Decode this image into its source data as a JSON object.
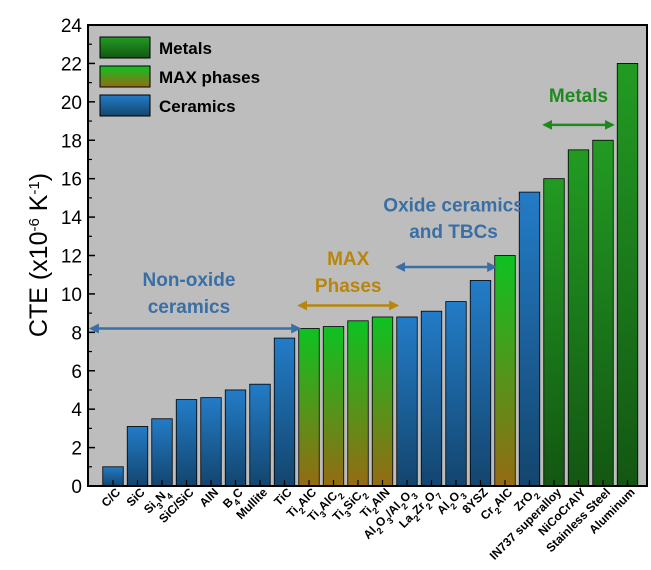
{
  "chart_data": {
    "type": "bar",
    "ylabel_parts": [
      "CTE (x10",
      "-6",
      " K",
      "-1",
      ")"
    ],
    "ylim": [
      0,
      24
    ],
    "yticks": [
      0,
      2,
      4,
      6,
      8,
      10,
      12,
      14,
      16,
      18,
      20,
      22,
      24
    ],
    "grid": false,
    "legend_position": "top-left",
    "legend": [
      {
        "label": "Metals",
        "group": "metal"
      },
      {
        "label": "MAX phases",
        "group": "max"
      },
      {
        "label": "Ceramics",
        "group": "ceramic"
      }
    ],
    "colors": {
      "metal": "#1e8a1e",
      "max": "#f0ad1e",
      "ceramic": "#1f6fb2",
      "background": "#bdbdbd"
    },
    "bars": [
      {
        "label": [
          [
            "C/C",
            ""
          ]
        ],
        "value": 1.0,
        "group": "ceramic"
      },
      {
        "label": [
          [
            "SiC",
            ""
          ]
        ],
        "value": 3.1,
        "group": "ceramic"
      },
      {
        "label": [
          [
            "Si",
            ""
          ],
          [
            "3",
            "sub"
          ],
          [
            "N",
            ""
          ],
          [
            "4",
            "sub"
          ]
        ],
        "value": 3.5,
        "group": "ceramic"
      },
      {
        "label": [
          [
            "SiC/SiC",
            ""
          ]
        ],
        "value": 4.5,
        "group": "ceramic"
      },
      {
        "label": [
          [
            "AlN",
            ""
          ]
        ],
        "value": 4.6,
        "group": "ceramic"
      },
      {
        "label": [
          [
            "B",
            ""
          ],
          [
            "4",
            "sub"
          ],
          [
            "C",
            ""
          ]
        ],
        "value": 5.0,
        "group": "ceramic"
      },
      {
        "label": [
          [
            "Mullite",
            ""
          ]
        ],
        "value": 5.3,
        "group": "ceramic"
      },
      {
        "label": [
          [
            "TiC",
            ""
          ]
        ],
        "value": 7.7,
        "group": "ceramic"
      },
      {
        "label": [
          [
            "Ti",
            ""
          ],
          [
            "2",
            "sub"
          ],
          [
            "AlC",
            ""
          ]
        ],
        "value": 8.2,
        "group": "max"
      },
      {
        "label": [
          [
            "Ti",
            ""
          ],
          [
            "3",
            "sub"
          ],
          [
            "AlC",
            ""
          ],
          [
            "2",
            "sub"
          ]
        ],
        "value": 8.3,
        "group": "max"
      },
      {
        "label": [
          [
            "Ti",
            ""
          ],
          [
            "3",
            "sub"
          ],
          [
            "SiC",
            ""
          ],
          [
            "2",
            "sub"
          ]
        ],
        "value": 8.6,
        "group": "max"
      },
      {
        "label": [
          [
            "Ti",
            ""
          ],
          [
            "2",
            "sub"
          ],
          [
            "AlN",
            ""
          ]
        ],
        "value": 8.8,
        "group": "max"
      },
      {
        "label": [
          [
            "Al",
            ""
          ],
          [
            "2",
            "sub"
          ],
          [
            "O",
            ""
          ],
          [
            "3",
            "sub"
          ],
          [
            "/Al",
            ""
          ],
          [
            "2",
            "sub"
          ],
          [
            "O",
            ""
          ],
          [
            "3",
            "sub"
          ]
        ],
        "value": 8.8,
        "group": "ceramic"
      },
      {
        "label": [
          [
            "La",
            ""
          ],
          [
            "2",
            "sub"
          ],
          [
            "Zr",
            ""
          ],
          [
            "2",
            "sub"
          ],
          [
            "O",
            ""
          ],
          [
            "7",
            "sub"
          ]
        ],
        "value": 9.1,
        "group": "ceramic"
      },
      {
        "label": [
          [
            "Al",
            ""
          ],
          [
            "2",
            "sub"
          ],
          [
            "O",
            ""
          ],
          [
            "3",
            "sub"
          ]
        ],
        "value": 9.6,
        "group": "ceramic"
      },
      {
        "label": [
          [
            "8YSZ",
            ""
          ]
        ],
        "value": 10.7,
        "group": "ceramic"
      },
      {
        "label": [
          [
            "Cr",
            ""
          ],
          [
            "2",
            "sub"
          ],
          [
            "AlC",
            ""
          ]
        ],
        "value": 12.0,
        "group": "max"
      },
      {
        "label": [
          [
            "ZrO",
            ""
          ],
          [
            "2",
            "sub"
          ]
        ],
        "value": 15.3,
        "group": "ceramic"
      },
      {
        "label": [
          [
            "IN737 superalloy",
            ""
          ]
        ],
        "value": 16.0,
        "group": "metal"
      },
      {
        "label": [
          [
            "NiCoCrAlY",
            ""
          ]
        ],
        "value": 17.5,
        "group": "metal"
      },
      {
        "label": [
          [
            "Stainless Steel",
            ""
          ]
        ],
        "value": 18.0,
        "group": "metal"
      },
      {
        "label": [
          [
            "Aluminum",
            ""
          ]
        ],
        "value": 22.0,
        "group": "metal"
      }
    ],
    "annotations": [
      {
        "lines": [
          "Non-oxide",
          "ceramics"
        ],
        "color": "#3a6fa5",
        "arrow_from": -0.9,
        "arrow_to": 7.6,
        "arrow_y": 8.2,
        "text_x": 3.1,
        "text_y": [
          10.4,
          9.0
        ]
      },
      {
        "lines": [
          "MAX",
          "Phases"
        ],
        "color": "#b8860b",
        "arrow_from": 7.6,
        "arrow_to": 11.6,
        "arrow_y": 9.4,
        "text_x": 9.6,
        "text_y": [
          11.5,
          10.1
        ]
      },
      {
        "lines": [
          "Oxide ceramics",
          "and TBCs"
        ],
        "color": "#3a6fa5",
        "arrow_from": 11.6,
        "arrow_to": 15.6,
        "arrow_y": 11.4,
        "text_x": 13.9,
        "text_y": [
          14.3,
          12.9
        ]
      },
      {
        "lines": [
          "Metals"
        ],
        "color": "#1e8a1e",
        "arrow_from": 17.6,
        "arrow_to": 20.4,
        "arrow_y": 18.8,
        "text_x": 19.0,
        "text_y": [
          20.0
        ]
      }
    ]
  }
}
